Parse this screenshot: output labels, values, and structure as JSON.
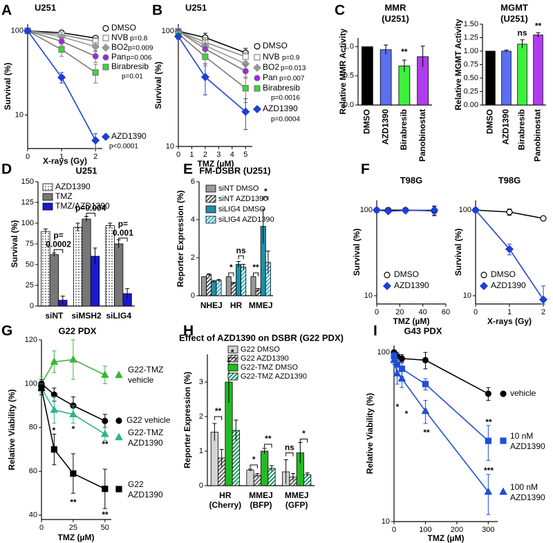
{
  "chart_data": [
    {
      "type": "line",
      "panel": "A",
      "title": "U251",
      "xlabel": "X-rays (Gy)",
      "ylabel": "Survival (%)",
      "log": true,
      "x": [
        0,
        1,
        2
      ],
      "xlim": [
        0,
        2.2
      ],
      "xticks": [
        0,
        1,
        2
      ],
      "ylim": [
        4,
        120
      ],
      "yticks": [
        10,
        100
      ],
      "series": [
        {
          "name": "DMSO",
          "color": "#000000",
          "fill": "#ffffff",
          "marker": "circle",
          "values": [
            100,
            95,
            82
          ],
          "errors": [
            0,
            5,
            5
          ]
        },
        {
          "name": "NVB",
          "p_value": "p=0.8",
          "color": "#888888",
          "fill": "#ffffff",
          "marker": "square",
          "values": [
            100,
            90,
            75
          ],
          "errors": [
            0,
            4,
            8
          ]
        },
        {
          "name": "BO2",
          "p_value": "p=0.009",
          "color": "#999999",
          "fill": "#999999",
          "marker": "diamond",
          "values": [
            100,
            85,
            65
          ],
          "errors": [
            0,
            5,
            8
          ]
        },
        {
          "name": "Pan",
          "p_value": "p=0.006",
          "color": "#777777",
          "fill": "#a020f0",
          "marker": "circle",
          "values": [
            100,
            75,
            50
          ],
          "errors": [
            0,
            8,
            8
          ]
        },
        {
          "name": "Birabresib",
          "p_value": "p=0.01",
          "color": "#777777",
          "fill": "#33dd33",
          "marker": "square",
          "values": [
            100,
            60,
            32
          ],
          "errors": [
            0,
            10,
            8
          ]
        },
        {
          "name": "AZD1390",
          "p_value": "p<0.0001",
          "color": "#1f3fd6",
          "fill": "#1f3fd6",
          "marker": "diamond",
          "values": [
            100,
            28,
            5
          ],
          "errors": [
            0,
            4,
            1
          ]
        }
      ]
    },
    {
      "type": "line",
      "panel": "B",
      "title": "U251",
      "xlabel": "TMZ (µM)",
      "ylabel": "Survival (%)",
      "log": true,
      "x": [
        0,
        2,
        5
      ],
      "xlim": [
        0,
        5.5
      ],
      "xticks": [
        0,
        1,
        2,
        3,
        4,
        5
      ],
      "ylim": [
        10,
        115
      ],
      "yticks": [
        10,
        100
      ],
      "series": [
        {
          "name": "DMSO",
          "color": "#000000",
          "fill": "#ffffff",
          "marker": "circle",
          "values": [
            100,
            88,
            65
          ],
          "errors": [
            3,
            8,
            6
          ]
        },
        {
          "name": "NVB",
          "p_value": "p=0.9",
          "color": "#888888",
          "fill": "#ffffff",
          "marker": "square",
          "values": [
            100,
            80,
            60
          ],
          "errors": [
            0,
            8,
            5
          ]
        },
        {
          "name": "BO2",
          "p_value": "p=0.013",
          "color": "#999999",
          "fill": "#999999",
          "marker": "diamond",
          "values": [
            100,
            75,
            52
          ],
          "errors": [
            0,
            8,
            5
          ]
        },
        {
          "name": "Pan",
          "p_value": "p=0.007",
          "color": "#777777",
          "fill": "#a020f0",
          "marker": "circle",
          "values": [
            100,
            70,
            45
          ],
          "errors": [
            0,
            8,
            6
          ]
        },
        {
          "name": "Birabresib",
          "p_value": "p=0.0016",
          "color": "#777777",
          "fill": "#33dd33",
          "marker": "square",
          "values": [
            95,
            60,
            32
          ],
          "errors": [
            5,
            10,
            8
          ]
        },
        {
          "name": "AZD1390",
          "p_value": "p=0.0004",
          "color": "#1f3fd6",
          "fill": "#1f3fd6",
          "marker": "diamond",
          "values": [
            90,
            40,
            20
          ],
          "errors": [
            5,
            12,
            6
          ]
        }
      ]
    },
    {
      "type": "bar",
      "panel": "C",
      "title": "MMR",
      "subtitle": "(U251)",
      "ylabel": "Relative MMR Activity",
      "categories": [
        "DMSO",
        "AZD1390",
        "Birabresib",
        "Panobinostat"
      ],
      "values": [
        1,
        0.95,
        0.67,
        0.83
      ],
      "errors": [
        0,
        0.08,
        0.1,
        0.18
      ],
      "colors": [
        "#000000",
        "#5b6ff0",
        "#3ef03e",
        "#b03cf0"
      ],
      "ylim": [
        0,
        1.15
      ],
      "yticks": [
        {
          "value": 0,
          "label": "0.0"
        },
        0.5,
        {
          "value": 1,
          "label": "1.0"
        }
      ],
      "annotations": [
        "**"
      ]
    },
    {
      "type": "bar",
      "title": "MGMT",
      "subtitle": "(U251)",
      "ylabel": "Relative MGMT Activity",
      "categories": [
        "DMSO",
        "AZD1390",
        "Birabresib",
        "Panobinostat"
      ],
      "values": [
        1,
        1,
        1.13,
        1.3
      ],
      "errors": [
        0,
        0.02,
        0.08,
        0.04
      ],
      "colors": [
        "#000000",
        "#5b6ff0",
        "#3ef03e",
        "#b03cf0"
      ],
      "ylim": [
        0,
        1.5
      ],
      "yticks": [
        {
          "value": 0,
          "label": "0.00"
        },
        0.25,
        {
          "value": 0.5,
          "label": "0.50"
        },
        0.75,
        {
          "value": 1,
          "label": "1.00"
        },
        1.25,
        {
          "value": 1.5,
          "label": "1.50"
        }
      ],
      "annotations": [
        "ns",
        "**"
      ]
    },
    {
      "type": "bar",
      "panel": "D",
      "title": "U251",
      "ylabel": "Survival (%)",
      "categories": [
        "siNT",
        "siMSH2",
        "siLIG4"
      ],
      "ylim": [
        0,
        150
      ],
      "yticks": [
        0,
        25,
        50,
        75,
        100,
        125,
        150
      ],
      "series": [
        {
          "name": "AZD1390",
          "color": "#000000",
          "pattern": "dots",
          "values": [
            90,
            95,
            97
          ],
          "errors": [
            3,
            5,
            3
          ]
        },
        {
          "name": "TMZ",
          "color": "#777777",
          "values": [
            62,
            105,
            75
          ],
          "errors": [
            2,
            3,
            5
          ]
        },
        {
          "name": "TMZ/AZD1390",
          "color": "#1a1acc",
          "values": [
            7,
            60,
            15
          ],
          "errors": [
            5,
            10,
            6
          ]
        }
      ],
      "annotations": [
        [
          "p=",
          "0.0002"
        ],
        [
          "p=0.004"
        ],
        [
          "p=",
          "0.001"
        ]
      ]
    },
    {
      "type": "bar",
      "panel": "E",
      "title": "FM-DSBR (U251)",
      "ylabel": "Reporter Expression (%)",
      "categories": [
        "NHEJ",
        "HR",
        "MMEJ"
      ],
      "ylim": [
        0,
        6
      ],
      "yticks": [
        0,
        2,
        4,
        6
      ],
      "series": [
        {
          "name": "siNT DMSO",
          "color": "#999999",
          "values": [
            1,
            1,
            1
          ],
          "errors": [
            0,
            0,
            0
          ]
        },
        {
          "name": "siNT AZD1390",
          "color": "#555555",
          "pattern": "hatch",
          "values": [
            1.1,
            0.65,
            0.3
          ],
          "errors": [
            0.05,
            0.05,
            0.08
          ]
        },
        {
          "name": "siLIG4 DMSO",
          "color": "#1f8fa8",
          "values": [
            0.75,
            1.65,
            3.65
          ],
          "errors": [
            0.05,
            0.15,
            0.9
          ]
        },
        {
          "name": "siLIG4 AZD1390",
          "color": "#2fb8d0",
          "pattern": "hatch",
          "values": [
            0.8,
            1.5,
            1.75
          ],
          "errors": [
            0.05,
            0.15,
            0.6
          ]
        }
      ],
      "annotations": [
        "*",
        "ns",
        "**",
        "*"
      ]
    },
    {
      "type": "line",
      "panel": "F",
      "title": "T98G",
      "xlabel": "TMZ (µM)",
      "ylabel": "Survival (%)",
      "log": true,
      "x": [
        0,
        10,
        25,
        50
      ],
      "xlim": [
        0,
        60
      ],
      "xticks": [
        0,
        20,
        40,
        60
      ],
      "ylim": [
        8,
        130
      ],
      "yticks": [
        10,
        100
      ],
      "series": [
        {
          "name": "DMSO",
          "color": "#000000",
          "fill": "#ffffff",
          "marker": "circle",
          "values": [
            100,
            100,
            100,
            98
          ],
          "errors": [
            0,
            3,
            0,
            12
          ]
        },
        {
          "name": "AZD1390",
          "color": "#1f3fd6",
          "fill": "#1f3fd6",
          "marker": "diamond",
          "values": [
            100,
            97,
            99,
            100
          ],
          "errors": [
            0,
            3,
            3,
            12
          ]
        }
      ]
    },
    {
      "type": "line",
      "title": "T98G",
      "xlabel": "X-rays (Gy)",
      "ylabel": "Survival (%)",
      "log": true,
      "x": [
        0,
        1,
        2
      ],
      "xlim": [
        0,
        2
      ],
      "xticks": [
        0,
        1,
        2
      ],
      "ylim": [
        8,
        130
      ],
      "yticks": [
        10,
        100
      ],
      "series": [
        {
          "name": "DMSO",
          "color": "#000000",
          "fill": "#ffffff",
          "marker": "circle",
          "values": [
            100,
            95,
            80
          ],
          "errors": [
            0,
            8,
            3
          ]
        },
        {
          "name": "AZD1390",
          "color": "#1f3fd6",
          "fill": "#1f3fd6",
          "marker": "diamond",
          "values": [
            100,
            35,
            9
          ],
          "errors": [
            0,
            5,
            4
          ]
        }
      ]
    },
    {
      "type": "line",
      "panel": "G",
      "title": "G22 PDX",
      "xlabel": "TMZ (µM)",
      "ylabel": "Relative Viability (%)",
      "log": false,
      "x": [
        0,
        10,
        25,
        50
      ],
      "xlim": [
        0,
        55
      ],
      "xticks": [
        0,
        25,
        50
      ],
      "ylim": [
        38,
        120
      ],
      "yticks": [
        40,
        60,
        80,
        100,
        120
      ],
      "series": [
        {
          "name": [
            "G22-TMZ",
            "vehicle"
          ],
          "color": "#3cb43c",
          "fill": "#3cb43c",
          "marker": "triangle",
          "values": [
            100,
            110,
            111,
            104
          ],
          "errors": [
            3,
            5,
            9,
            4
          ]
        },
        {
          "name": [
            "G22 vehicle"
          ],
          "color": "#000000",
          "fill": "#000000",
          "marker": "circle",
          "values": [
            100,
            95,
            90,
            83
          ],
          "errors": [
            2,
            3,
            4,
            3
          ]
        },
        {
          "name": [
            "G22-TMZ",
            "AZD1390"
          ],
          "color": "#2fb38f",
          "fill": "#2fb38f",
          "marker": "triangle",
          "values": [
            98,
            88,
            86,
            77
          ],
          "errors": [
            2,
            6,
            4,
            3
          ]
        },
        {
          "name": [
            "G22",
            "AZD1390"
          ],
          "color": "#000000",
          "fill": "#000000",
          "marker": "square",
          "values": [
            98,
            70,
            59,
            52
          ],
          "errors": [
            3,
            7,
            9,
            9
          ]
        }
      ],
      "annotations": [
        "*",
        "*",
        "**",
        "**",
        "**"
      ]
    },
    {
      "type": "bar",
      "panel": "H",
      "title": "Effect of AZD1390 on DSBR (G22 PDX)",
      "ylabel": "Reporter Expression (%)",
      "categories": [
        [
          "HR",
          "(Cherry)"
        ],
        [
          "MMEJ",
          "(BFP)"
        ],
        [
          "MMEJ",
          "(GFP)"
        ]
      ],
      "ylim": [
        0,
        3.8
      ],
      "yticks": [
        0,
        1,
        2,
        3
      ],
      "series": [
        {
          "name": "G22 DMSO",
          "color": "#d3d3d3",
          "values": [
            1.55,
            0.45,
            0.4
          ],
          "errors": [
            0.25,
            0.03,
            0.35
          ]
        },
        {
          "name": "G22 AZD1390",
          "color": "#666666",
          "pattern": "hatch",
          "values": [
            0.8,
            0.3,
            0.25
          ],
          "errors": [
            0.25,
            0.05,
            0.1
          ]
        },
        {
          "name": "G22-TMZ DMSO",
          "color": "#22bb22",
          "values": [
            3.0,
            1.0,
            0.95
          ],
          "errors": [
            0.6,
            0.08,
            0.3
          ]
        },
        {
          "name": "G22-TMZ AZD1390",
          "color": "#1a9a5a",
          "pattern": "hatch",
          "values": [
            1.6,
            0.5,
            0.32
          ],
          "errors": [
            0.3,
            0.08,
            0.05
          ]
        }
      ],
      "annotations": [
        "**",
        "*",
        "*",
        "**",
        "ns",
        "*"
      ]
    },
    {
      "type": "line",
      "panel": "I",
      "title": "G43 PDX",
      "xlabel": "TMZ (µM)",
      "ylabel": "Relative Viability (%)",
      "log": true,
      "x": [
        0,
        10,
        25,
        100,
        300
      ],
      "xlim": [
        0,
        330
      ],
      "xticks": [
        0,
        100,
        200,
        300
      ],
      "ylim": [
        10,
        110
      ],
      "yticks": [
        10,
        100
      ],
      "series": [
        {
          "name": [
            "vehicle"
          ],
          "color": "#000000",
          "fill": "#000000",
          "marker": "circle",
          "values": [
            100,
            95,
            92,
            90,
            57
          ],
          "errors": [
            3,
            5,
            5,
            10,
            5
          ]
        },
        {
          "name": [
            "10 nM",
            "AZD1390"
          ],
          "color": "#1f4fd6",
          "fill": "#1f4fd6",
          "marker": "square",
          "values": [
            95,
            85,
            80,
            65,
            30
          ],
          "errors": [
            5,
            8,
            8,
            5,
            7
          ]
        },
        {
          "name": [
            "100 nM",
            "AZD1390"
          ],
          "color": "#1f4fd6",
          "fill": "#1f4fd6",
          "marker": "triangle",
          "values": [
            90,
            75,
            70,
            45,
            15
          ],
          "errors": [
            5,
            10,
            8,
            7,
            4
          ]
        }
      ],
      "annotations": [
        "*",
        "*",
        "**",
        "**",
        "***"
      ]
    }
  ]
}
